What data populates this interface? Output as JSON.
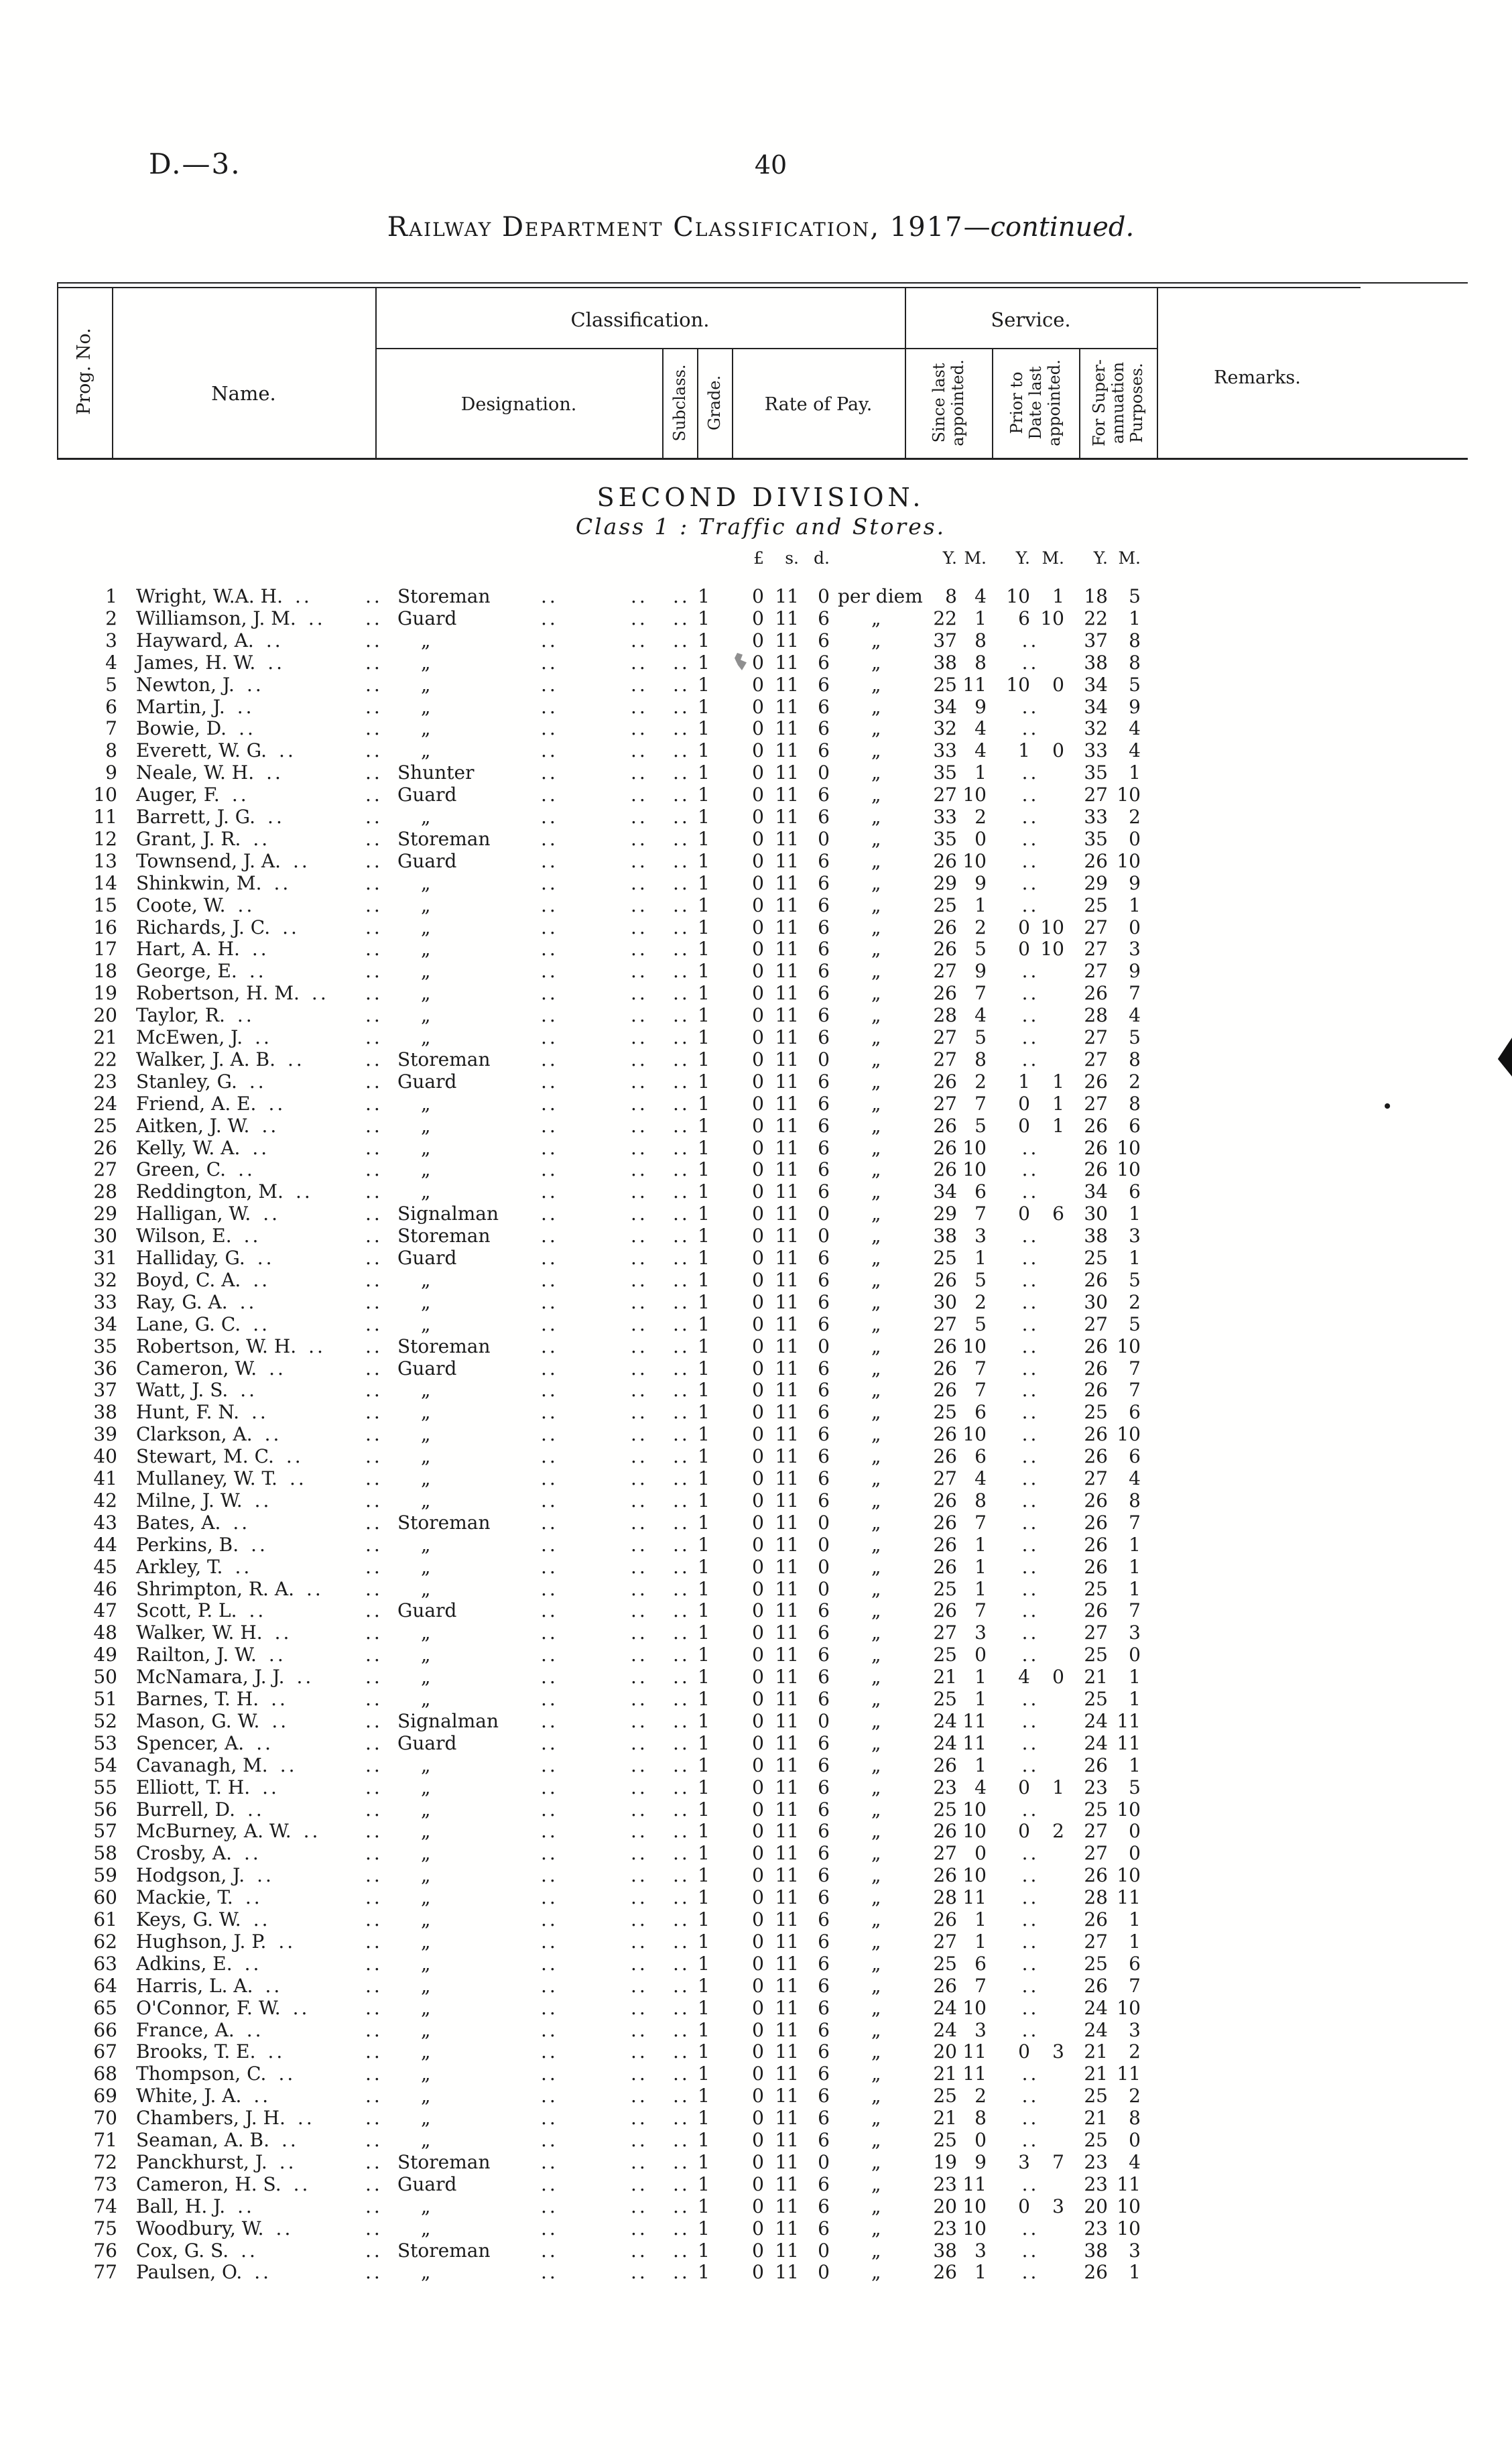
{
  "page": {
    "doc_ref": "D.—3.",
    "page_number": "40",
    "title_main": "Railway Department Classification, 1917",
    "title_dash": "—",
    "title_cont": "continued.",
    "division_heading": "SECOND DIVISION.",
    "class_heading": "Class 1 : Traffic and Stores."
  },
  "table_header": {
    "prog_no": "Prog. No.",
    "name": "Name.",
    "classification": "Classification.",
    "service": "Service.",
    "designation": "Designation.",
    "subclass": "Subclass.",
    "grade": "Grade.",
    "rate_of_pay": "Rate of Pay.",
    "since_lines": [
      "Since last",
      "appointed."
    ],
    "prior_lines": [
      "Prior to",
      "Date last",
      "appointed."
    ],
    "super_lines": [
      "For Super-",
      "annuation",
      "Purposes."
    ],
    "remarks": "Remarks."
  },
  "units": {
    "pounds": "£",
    "shillings": "s.",
    "pence": "d.",
    "years": "Y.",
    "months": "M."
  },
  "glyphs": {
    "dots": "..",
    "ditto": "„"
  },
  "rows": [
    {
      "no": "1",
      "name": "Wright, W.A. H.",
      "desig": "Storeman",
      "grade": "1",
      "rate": "0 11 0",
      "per": "per diem",
      "since": "8 4",
      "prior": "10 1",
      "superann": "18 5"
    },
    {
      "no": "2",
      "name": "Williamson, J. M.",
      "desig": "Guard",
      "grade": "1",
      "rate": "0 11 6",
      "per": "„",
      "since": "22 1",
      "prior": "6 10",
      "superann": "22 1"
    },
    {
      "no": "3",
      "name": "Hayward, A.",
      "desig": "„",
      "grade": "1",
      "rate": "0 11 6",
      "per": "„",
      "since": "37 8",
      "prior": "..",
      "superann": "37 8"
    },
    {
      "no": "4",
      "name": "James, H. W.",
      "desig": "„",
      "grade": "1",
      "rate": "0 11 6",
      "per": "„",
      "since": "38 8",
      "prior": "..",
      "superann": "38 8"
    },
    {
      "no": "5",
      "name": "Newton, J.",
      "desig": "„",
      "grade": "1",
      "rate": "0 11 6",
      "per": "„",
      "since": "25 11",
      "prior": "10 0",
      "superann": "34 5"
    },
    {
      "no": "6",
      "name": "Martin, J.",
      "desig": "„",
      "grade": "1",
      "rate": "0 11 6",
      "per": "„",
      "since": "34 9",
      "prior": "..",
      "superann": "34 9"
    },
    {
      "no": "7",
      "name": "Bowie, D.",
      "desig": "„",
      "grade": "1",
      "rate": "0 11 6",
      "per": "„",
      "since": "32 4",
      "prior": "..",
      "superann": "32 4"
    },
    {
      "no": "8",
      "name": "Everett, W. G.",
      "desig": "„",
      "grade": "1",
      "rate": "0 11 6",
      "per": "„",
      "since": "33 4",
      "prior": "1 0",
      "superann": "33 4"
    },
    {
      "no": "9",
      "name": "Neale, W. H.",
      "desig": "Shunter",
      "grade": "1",
      "rate": "0 11 0",
      "per": "„",
      "since": "35 1",
      "prior": "..",
      "superann": "35 1"
    },
    {
      "no": "10",
      "name": "Auger, F.",
      "desig": "Guard",
      "grade": "1",
      "rate": "0 11 6",
      "per": "„",
      "since": "27 10",
      "prior": "..",
      "superann": "27 10"
    },
    {
      "no": "11",
      "name": "Barrett, J. G.",
      "desig": "„",
      "grade": "1",
      "rate": "0 11 6",
      "per": "„",
      "since": "33 2",
      "prior": "..",
      "superann": "33 2"
    },
    {
      "no": "12",
      "name": "Grant, J. R.",
      "desig": "Storeman",
      "grade": "1",
      "rate": "0 11 0",
      "per": "„",
      "since": "35 0",
      "prior": "..",
      "superann": "35 0"
    },
    {
      "no": "13",
      "name": "Townsend, J. A.",
      "desig": "Guard",
      "grade": "1",
      "rate": "0 11 6",
      "per": "„",
      "since": "26 10",
      "prior": "..",
      "superann": "26 10"
    },
    {
      "no": "14",
      "name": "Shinkwin, M.",
      "desig": "„",
      "grade": "1",
      "rate": "0 11 6",
      "per": "„",
      "since": "29 9",
      "prior": "..",
      "superann": "29 9"
    },
    {
      "no": "15",
      "name": "Coote, W.",
      "desig": "„",
      "grade": "1",
      "rate": "0 11 6",
      "per": "„",
      "since": "25 1",
      "prior": "..",
      "superann": "25 1"
    },
    {
      "no": "16",
      "name": "Richards, J. C.",
      "desig": "„",
      "grade": "1",
      "rate": "0 11 6",
      "per": "„",
      "since": "26 2",
      "prior": "0 10",
      "superann": "27 0"
    },
    {
      "no": "17",
      "name": "Hart, A. H.",
      "desig": "„",
      "grade": "1",
      "rate": "0 11 6",
      "per": "„",
      "since": "26 5",
      "prior": "0 10",
      "superann": "27 3"
    },
    {
      "no": "18",
      "name": "George, E.",
      "desig": "„",
      "grade": "1",
      "rate": "0 11 6",
      "per": "„",
      "since": "27 9",
      "prior": "..",
      "superann": "27 9"
    },
    {
      "no": "19",
      "name": "Robertson, H. M.",
      "desig": "„",
      "grade": "1",
      "rate": "0 11 6",
      "per": "„",
      "since": "26 7",
      "prior": "..",
      "superann": "26 7"
    },
    {
      "no": "20",
      "name": "Taylor, R.",
      "desig": "„",
      "grade": "1",
      "rate": "0 11 6",
      "per": "„",
      "since": "28 4",
      "prior": "..",
      "superann": "28 4"
    },
    {
      "no": "21",
      "name": "McEwen, J.",
      "desig": "„",
      "grade": "1",
      "rate": "0 11 6",
      "per": "„",
      "since": "27 5",
      "prior": "..",
      "superann": "27 5"
    },
    {
      "no": "22",
      "name": "Walker, J. A. B.",
      "desig": "Storeman",
      "grade": "1",
      "rate": "0 11 0",
      "per": "„",
      "since": "27 8",
      "prior": "..",
      "superann": "27 8"
    },
    {
      "no": "23",
      "name": "Stanley, G.",
      "desig": "Guard",
      "grade": "1",
      "rate": "0 11 6",
      "per": "„",
      "since": "26 2",
      "prior": "1 1",
      "superann": "26 2"
    },
    {
      "no": "24",
      "name": "Friend, A. E.",
      "desig": "„",
      "grade": "1",
      "rate": "0 11 6",
      "per": "„",
      "since": "27 7",
      "prior": "0 1",
      "superann": "27 8"
    },
    {
      "no": "25",
      "name": "Aitken, J. W.",
      "desig": "„",
      "grade": "1",
      "rate": "0 11 6",
      "per": "„",
      "since": "26 5",
      "prior": "0 1",
      "superann": "26 6"
    },
    {
      "no": "26",
      "name": "Kelly, W. A.",
      "desig": "„",
      "grade": "1",
      "rate": "0 11 6",
      "per": "„",
      "since": "26 10",
      "prior": "..",
      "superann": "26 10"
    },
    {
      "no": "27",
      "name": "Green, C.",
      "desig": "„",
      "grade": "1",
      "rate": "0 11 6",
      "per": "„",
      "since": "26 10",
      "prior": "..",
      "superann": "26 10"
    },
    {
      "no": "28",
      "name": "Reddington, M.",
      "desig": "„",
      "grade": "1",
      "rate": "0 11 6",
      "per": "„",
      "since": "34 6",
      "prior": "..",
      "superann": "34 6"
    },
    {
      "no": "29",
      "name": "Halligan, W.",
      "desig": "Signalman",
      "grade": "1",
      "rate": "0 11 0",
      "per": "„",
      "since": "29 7",
      "prior": "0 6",
      "superann": "30 1"
    },
    {
      "no": "30",
      "name": "Wilson, E.",
      "desig": "Storeman",
      "grade": "1",
      "rate": "0 11 0",
      "per": "„",
      "since": "38 3",
      "prior": "..",
      "superann": "38 3"
    },
    {
      "no": "31",
      "name": "Halliday, G.",
      "desig": "Guard",
      "grade": "1",
      "rate": "0 11 6",
      "per": "„",
      "since": "25 1",
      "prior": "..",
      "superann": "25 1"
    },
    {
      "no": "32",
      "name": "Boyd, C. A.",
      "desig": "„",
      "grade": "1",
      "rate": "0 11 6",
      "per": "„",
      "since": "26 5",
      "prior": "..",
      "superann": "26 5"
    },
    {
      "no": "33",
      "name": "Ray, G. A.",
      "desig": "„",
      "grade": "1",
      "rate": "0 11 6",
      "per": "„",
      "since": "30 2",
      "prior": "..",
      "superann": "30 2"
    },
    {
      "no": "34",
      "name": "Lane, G. C.",
      "desig": "„",
      "grade": "1",
      "rate": "0 11 6",
      "per": "„",
      "since": "27 5",
      "prior": "..",
      "superann": "27 5"
    },
    {
      "no": "35",
      "name": "Robertson, W. H.",
      "desig": "Storeman",
      "grade": "1",
      "rate": "0 11 0",
      "per": "„",
      "since": "26 10",
      "prior": "..",
      "superann": "26 10"
    },
    {
      "no": "36",
      "name": "Cameron, W.",
      "desig": "Guard",
      "grade": "1",
      "rate": "0 11 6",
      "per": "„",
      "since": "26 7",
      "prior": "..",
      "superann": "26 7"
    },
    {
      "no": "37",
      "name": "Watt, J. S.",
      "desig": "„",
      "grade": "1",
      "rate": "0 11 6",
      "per": "„",
      "since": "26 7",
      "prior": "..",
      "superann": "26 7"
    },
    {
      "no": "38",
      "name": "Hunt, F. N.",
      "desig": "„",
      "grade": "1",
      "rate": "0 11 6",
      "per": "„",
      "since": "25 6",
      "prior": "..",
      "superann": "25 6"
    },
    {
      "no": "39",
      "name": "Clarkson, A.",
      "desig": "„",
      "grade": "1",
      "rate": "0 11 6",
      "per": "„",
      "since": "26 10",
      "prior": "..",
      "superann": "26 10"
    },
    {
      "no": "40",
      "name": "Stewart, M. C.",
      "desig": "„",
      "grade": "1",
      "rate": "0 11 6",
      "per": "„",
      "since": "26 6",
      "prior": "..",
      "superann": "26 6"
    },
    {
      "no": "41",
      "name": "Mullaney, W. T.",
      "desig": "„",
      "grade": "1",
      "rate": "0 11 6",
      "per": "„",
      "since": "27 4",
      "prior": "..",
      "superann": "27 4"
    },
    {
      "no": "42",
      "name": "Milne, J. W.",
      "desig": "„",
      "grade": "1",
      "rate": "0 11 6",
      "per": "„",
      "since": "26 8",
      "prior": "..",
      "superann": "26 8"
    },
    {
      "no": "43",
      "name": "Bates, A.",
      "desig": "Storeman",
      "grade": "1",
      "rate": "0 11 0",
      "per": "„",
      "since": "26 7",
      "prior": "..",
      "superann": "26 7"
    },
    {
      "no": "44",
      "name": "Perkins, B.",
      "desig": "„",
      "grade": "1",
      "rate": "0 11 0",
      "per": "„",
      "since": "26 1",
      "prior": "..",
      "superann": "26 1"
    },
    {
      "no": "45",
      "name": "Arkley, T.",
      "desig": "„",
      "grade": "1",
      "rate": "0 11 0",
      "per": "„",
      "since": "26 1",
      "prior": "..",
      "superann": "26 1"
    },
    {
      "no": "46",
      "name": "Shrimpton, R. A.",
      "desig": "„",
      "grade": "1",
      "rate": "0 11 0",
      "per": "„",
      "since": "25 1",
      "prior": "..",
      "superann": "25 1"
    },
    {
      "no": "47",
      "name": "Scott, P. L.",
      "desig": "Guard",
      "grade": "1",
      "rate": "0 11 6",
      "per": "„",
      "since": "26 7",
      "prior": "..",
      "superann": "26 7"
    },
    {
      "no": "48",
      "name": "Walker, W. H.",
      "desig": "„",
      "grade": "1",
      "rate": "0 11 6",
      "per": "„",
      "since": "27 3",
      "prior": "..",
      "superann": "27 3"
    },
    {
      "no": "49",
      "name": "Railton, J. W.",
      "desig": "„",
      "grade": "1",
      "rate": "0 11 6",
      "per": "„",
      "since": "25 0",
      "prior": "..",
      "superann": "25 0"
    },
    {
      "no": "50",
      "name": "McNamara, J. J.",
      "desig": "„",
      "grade": "1",
      "rate": "0 11 6",
      "per": "„",
      "since": "21 1",
      "prior": "4 0",
      "superann": "21 1"
    },
    {
      "no": "51",
      "name": "Barnes, T. H.",
      "desig": "„",
      "grade": "1",
      "rate": "0 11 6",
      "per": "„",
      "since": "25 1",
      "prior": "..",
      "superann": "25 1"
    },
    {
      "no": "52",
      "name": "Mason, G. W.",
      "desig": "Signalman",
      "grade": "1",
      "rate": "0 11 0",
      "per": "„",
      "since": "24 11",
      "prior": "..",
      "superann": "24 11"
    },
    {
      "no": "53",
      "name": "Spencer, A.",
      "desig": "Guard",
      "grade": "1",
      "rate": "0 11 6",
      "per": "„",
      "since": "24 11",
      "prior": "..",
      "superann": "24 11"
    },
    {
      "no": "54",
      "name": "Cavanagh, M.",
      "desig": "„",
      "grade": "1",
      "rate": "0 11 6",
      "per": "„",
      "since": "26 1",
      "prior": "..",
      "superann": "26 1"
    },
    {
      "no": "55",
      "name": "Elliott, T. H.",
      "desig": "„",
      "grade": "1",
      "rate": "0 11 6",
      "per": "„",
      "since": "23 4",
      "prior": "0 1",
      "superann": "23 5"
    },
    {
      "no": "56",
      "name": "Burrell, D.",
      "desig": "„",
      "grade": "1",
      "rate": "0 11 6",
      "per": "„",
      "since": "25 10",
      "prior": "..",
      "superann": "25 10"
    },
    {
      "no": "57",
      "name": "McBurney, A. W.",
      "desig": "„",
      "grade": "1",
      "rate": "0 11 6",
      "per": "„",
      "since": "26 10",
      "prior": "0 2",
      "superann": "27 0"
    },
    {
      "no": "58",
      "name": "Crosby, A.",
      "desig": "„",
      "grade": "1",
      "rate": "0 11 6",
      "per": "„",
      "since": "27 0",
      "prior": "..",
      "superann": "27 0"
    },
    {
      "no": "59",
      "name": "Hodgson, J.",
      "desig": "„",
      "grade": "1",
      "rate": "0 11 6",
      "per": "„",
      "since": "26 10",
      "prior": "..",
      "superann": "26 10"
    },
    {
      "no": "60",
      "name": "Mackie, T.",
      "desig": "„",
      "grade": "1",
      "rate": "0 11 6",
      "per": "„",
      "since": "28 11",
      "prior": "..",
      "superann": "28 11"
    },
    {
      "no": "61",
      "name": "Keys, G. W.",
      "desig": "„",
      "grade": "1",
      "rate": "0 11 6",
      "per": "„",
      "since": "26 1",
      "prior": "..",
      "superann": "26 1"
    },
    {
      "no": "62",
      "name": "Hughson, J. P.",
      "desig": "„",
      "grade": "1",
      "rate": "0 11 6",
      "per": "„",
      "since": "27 1",
      "prior": "..",
      "superann": "27 1"
    },
    {
      "no": "63",
      "name": "Adkins, E.",
      "desig": "„",
      "grade": "1",
      "rate": "0 11 6",
      "per": "„",
      "since": "25 6",
      "prior": "..",
      "superann": "25 6"
    },
    {
      "no": "64",
      "name": "Harris, L. A.",
      "desig": "„",
      "grade": "1",
      "rate": "0 11 6",
      "per": "„",
      "since": "26 7",
      "prior": "..",
      "superann": "26 7"
    },
    {
      "no": "65",
      "name": "O'Connor, F. W.",
      "desig": "„",
      "grade": "1",
      "rate": "0 11 6",
      "per": "„",
      "since": "24 10",
      "prior": "..",
      "superann": "24 10"
    },
    {
      "no": "66",
      "name": "France, A.",
      "desig": "„",
      "grade": "1",
      "rate": "0 11 6",
      "per": "„",
      "since": "24 3",
      "prior": "..",
      "superann": "24 3"
    },
    {
      "no": "67",
      "name": "Brooks, T. E.",
      "desig": "„",
      "grade": "1",
      "rate": "0 11 6",
      "per": "„",
      "since": "20 11",
      "prior": "0 3",
      "superann": "21 2"
    },
    {
      "no": "68",
      "name": "Thompson, C.",
      "desig": "„",
      "grade": "1",
      "rate": "0 11 6",
      "per": "„",
      "since": "21 11",
      "prior": "..",
      "superann": "21 11"
    },
    {
      "no": "69",
      "name": "White, J. A.",
      "desig": "„",
      "grade": "1",
      "rate": "0 11 6",
      "per": "„",
      "since": "25 2",
      "prior": "..",
      "superann": "25 2"
    },
    {
      "no": "70",
      "name": "Chambers, J. H.",
      "desig": "„",
      "grade": "1",
      "rate": "0 11 6",
      "per": "„",
      "since": "21 8",
      "prior": "..",
      "superann": "21 8"
    },
    {
      "no": "71",
      "name": "Seaman, A. B.",
      "desig": "„",
      "grade": "1",
      "rate": "0 11 6",
      "per": "„",
      "since": "25 0",
      "prior": "..",
      "superann": "25 0"
    },
    {
      "no": "72",
      "name": "Panckhurst, J.",
      "desig": "Storeman",
      "grade": "1",
      "rate": "0 11 0",
      "per": "„",
      "since": "19 9",
      "prior": "3 7",
      "superann": "23 4"
    },
    {
      "no": "73",
      "name": "Cameron, H. S.",
      "desig": "Guard",
      "grade": "1",
      "rate": "0 11 6",
      "per": "„",
      "since": "23 11",
      "prior": "..",
      "superann": "23 11"
    },
    {
      "no": "74",
      "name": "Ball, H. J.",
      "desig": "„",
      "grade": "1",
      "rate": "0 11 6",
      "per": "„",
      "since": "20 10",
      "prior": "0 3",
      "superann": "20 10"
    },
    {
      "no": "75",
      "name": "Woodbury, W.",
      "desig": "„",
      "grade": "1",
      "rate": "0 11 6",
      "per": "„",
      "since": "23 10",
      "prior": "..",
      "superann": "23 10"
    },
    {
      "no": "76",
      "name": "Cox, G. S.",
      "desig": "Storeman",
      "grade": "1",
      "rate": "0 11 0",
      "per": "„",
      "since": "38 3",
      "prior": "..",
      "superann": "38 3"
    },
    {
      "no": "77",
      "name": "Paulsen, O.",
      "desig": "„",
      "grade": "1",
      "rate": "0 11 0",
      "per": "„",
      "since": "26 1",
      "prior": "..",
      "superann": "26 1"
    }
  ]
}
